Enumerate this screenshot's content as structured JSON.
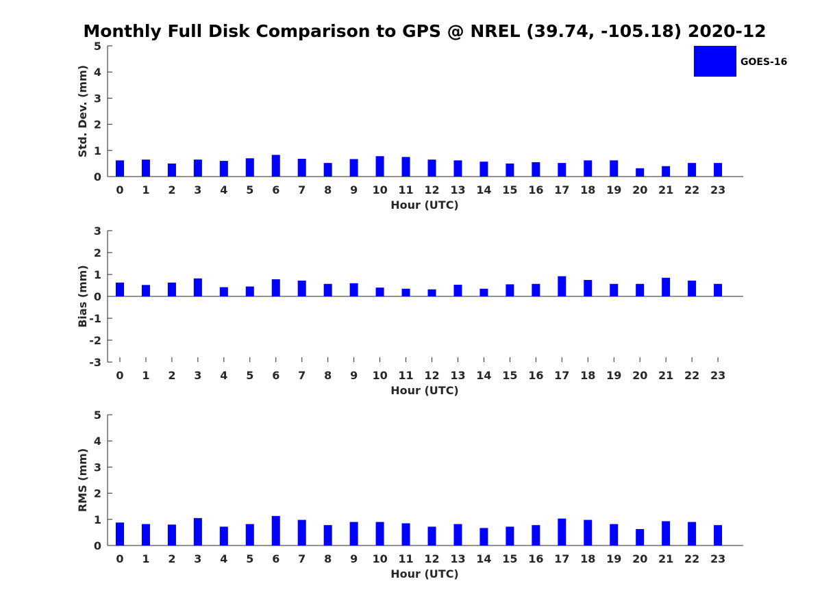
{
  "chart_data": {
    "title": "Monthly Full Disk Comparison to GPS @ NREL (39.74, -105.18) 2020-12",
    "legend": {
      "label": "GOES-16",
      "color": "#0000ff",
      "placement": "top-right"
    },
    "panels": [
      {
        "type": "bar",
        "ylabel": "Std. Dev. (mm)",
        "xlabel": "Hour (UTC)",
        "ylim": [
          0,
          5
        ],
        "yticks": [
          0,
          1,
          2,
          3,
          4,
          5
        ],
        "categories": [
          "0",
          "1",
          "2",
          "3",
          "4",
          "5",
          "6",
          "7",
          "8",
          "9",
          "10",
          "11",
          "12",
          "13",
          "14",
          "15",
          "16",
          "17",
          "18",
          "19",
          "20",
          "21",
          "22",
          "23"
        ],
        "series": [
          {
            "name": "GOES-16",
            "values": [
              0.62,
              0.65,
              0.5,
              0.65,
              0.6,
              0.7,
              0.83,
              0.68,
              0.52,
              0.67,
              0.78,
              0.75,
              0.65,
              0.62,
              0.57,
              0.5,
              0.55,
              0.52,
              0.62,
              0.62,
              0.32,
              0.4,
              0.52,
              0.52
            ]
          }
        ]
      },
      {
        "type": "bar",
        "ylabel": "Bias (mm)",
        "xlabel": "Hour (UTC)",
        "ylim": [
          -3,
          3
        ],
        "yticks": [
          -3,
          -2,
          -1,
          0,
          1,
          2,
          3
        ],
        "categories": [
          "0",
          "1",
          "2",
          "3",
          "4",
          "5",
          "6",
          "7",
          "8",
          "9",
          "10",
          "11",
          "12",
          "13",
          "14",
          "15",
          "16",
          "17",
          "18",
          "19",
          "20",
          "21",
          "22",
          "23"
        ],
        "series": [
          {
            "name": "GOES-16",
            "values": [
              0.63,
              0.52,
              0.63,
              0.82,
              0.42,
              0.45,
              0.78,
              0.72,
              0.57,
              0.6,
              0.4,
              0.35,
              0.32,
              0.53,
              0.35,
              0.55,
              0.57,
              0.92,
              0.75,
              0.57,
              0.57,
              0.85,
              0.72,
              0.57
            ]
          }
        ]
      },
      {
        "type": "bar",
        "ylabel": "RMS (mm)",
        "xlabel": "Hour (UTC)",
        "ylim": [
          0,
          5
        ],
        "yticks": [
          0,
          1,
          2,
          3,
          4,
          5
        ],
        "categories": [
          "0",
          "1",
          "2",
          "3",
          "4",
          "5",
          "6",
          "7",
          "8",
          "9",
          "10",
          "11",
          "12",
          "13",
          "14",
          "15",
          "16",
          "17",
          "18",
          "19",
          "20",
          "21",
          "22",
          "23"
        ],
        "series": [
          {
            "name": "GOES-16",
            "values": [
              0.88,
              0.82,
              0.8,
              1.05,
              0.72,
              0.82,
              1.13,
              0.98,
              0.78,
              0.9,
              0.9,
              0.85,
              0.72,
              0.82,
              0.67,
              0.72,
              0.78,
              1.03,
              0.98,
              0.82,
              0.63,
              0.93,
              0.9,
              0.78
            ]
          }
        ]
      }
    ]
  }
}
